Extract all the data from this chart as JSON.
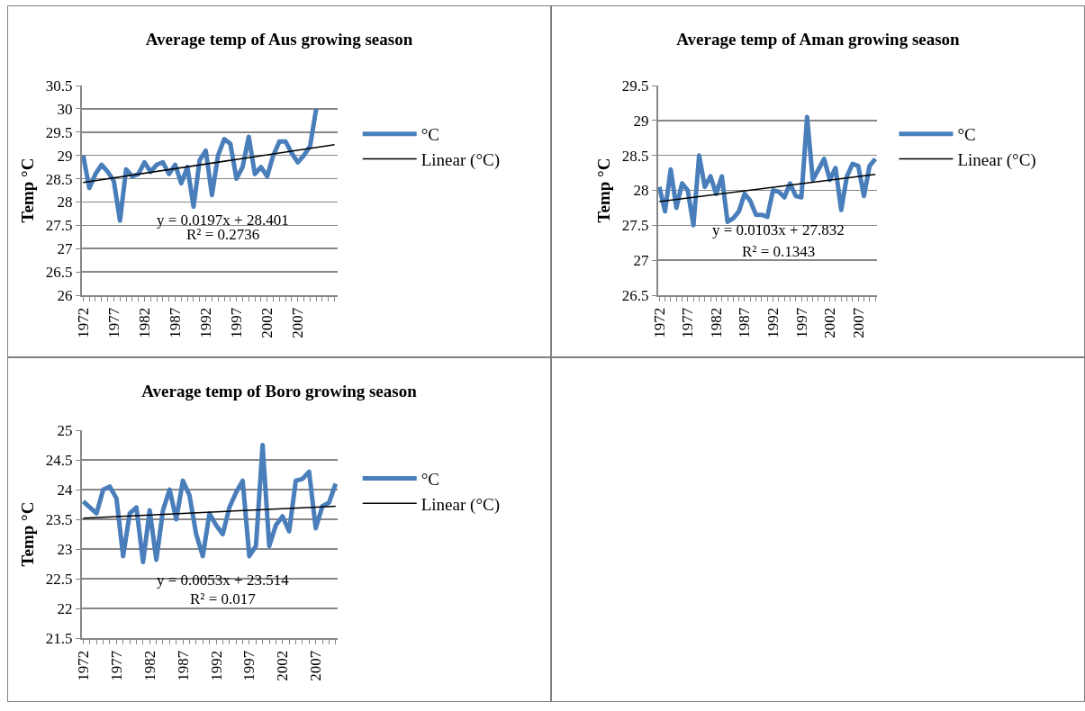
{
  "chart_data": [
    {
      "type": "line",
      "title": "Average temp of Aus growing season",
      "ylabel": "Temp °C",
      "x": [
        1972,
        1973,
        1974,
        1975,
        1976,
        1977,
        1978,
        1979,
        1980,
        1981,
        1982,
        1983,
        1984,
        1985,
        1986,
        1987,
        1988,
        1989,
        1990,
        1991,
        1992,
        1993,
        1994,
        1995,
        1996,
        1997,
        1998,
        1999,
        2000,
        2001,
        2002,
        2003,
        2004,
        2005,
        2006,
        2007,
        2008,
        2009,
        2010
      ],
      "series": [
        {
          "name": "°C",
          "color": "#4a7ebb",
          "values": [
            29.0,
            28.3,
            28.6,
            28.8,
            28.65,
            28.45,
            27.6,
            28.7,
            28.55,
            28.6,
            28.85,
            28.65,
            28.8,
            28.85,
            28.6,
            28.8,
            28.4,
            28.75,
            27.9,
            28.9,
            29.1,
            28.15,
            29.0,
            29.35,
            29.25,
            28.5,
            28.75,
            29.4,
            28.6,
            28.75,
            28.55,
            29.0,
            29.3,
            29.3,
            29.05,
            28.85,
            29.0,
            29.2,
            30.0
          ]
        },
        {
          "name": "Linear (°C)",
          "color": "#000000",
          "x": [
            1972,
            2013
          ],
          "values": [
            28.42,
            29.23
          ]
        }
      ],
      "xlim": [
        1971.8,
        2013.5
      ],
      "xticks": [
        1972,
        {
          "value": 1973,
          "label": null
        },
        {
          "value": 1974,
          "label": null
        },
        {
          "value": 1975,
          "label": null
        },
        {
          "value": 1976,
          "label": null
        },
        1977,
        {
          "value": 1978,
          "label": null
        },
        {
          "value": 1979,
          "label": null
        },
        {
          "value": 1980,
          "label": null
        },
        {
          "value": 1981,
          "label": null
        },
        1982,
        {
          "value": 1983,
          "label": null
        },
        {
          "value": 1984,
          "label": null
        },
        {
          "value": 1985,
          "label": null
        },
        {
          "value": 1986,
          "label": null
        },
        1987,
        {
          "value": 1988,
          "label": null
        },
        {
          "value": 1989,
          "label": null
        },
        {
          "value": 1990,
          "label": null
        },
        {
          "value": 1991,
          "label": null
        },
        1992,
        {
          "value": 1993,
          "label": null
        },
        {
          "value": 1994,
          "label": null
        },
        {
          "value": 1995,
          "label": null
        },
        {
          "value": 1996,
          "label": null
        },
        1997,
        {
          "value": 1998,
          "label": null
        },
        {
          "value": 1999,
          "label": null
        },
        {
          "value": 2000,
          "label": null
        },
        {
          "value": 2001,
          "label": null
        },
        2002,
        {
          "value": 2003,
          "label": null
        },
        {
          "value": 2004,
          "label": null
        },
        {
          "value": 2005,
          "label": null
        },
        {
          "value": 2006,
          "label": null
        },
        2007,
        {
          "value": 2008,
          "label": null
        },
        {
          "value": 2009,
          "label": null
        },
        {
          "value": 2010,
          "label": null
        },
        {
          "value": 2011,
          "label": null
        },
        {
          "value": 2012,
          "label": null
        },
        {
          "value": 2013,
          "label": null
        }
      ],
      "ylim": [
        26,
        30.5
      ],
      "yticks": [
        26,
        26.5,
        27,
        27.5,
        28,
        28.5,
        29,
        29.5,
        30,
        30.5
      ],
      "grid": "y",
      "legend": "right",
      "annotations": [
        "y = 0.0197x + 28.401",
        "R² = 0.2736"
      ]
    },
    {
      "type": "line",
      "title": "Average temp of Aman growing season",
      "ylabel": "Temp °C",
      "x": [
        1972,
        1973,
        1974,
        1975,
        1976,
        1977,
        1978,
        1979,
        1980,
        1981,
        1982,
        1983,
        1984,
        1985,
        1986,
        1987,
        1988,
        1989,
        1990,
        1991,
        1992,
        1993,
        1994,
        1995,
        1996,
        1997,
        1998,
        1999,
        2000,
        2001,
        2002,
        2003,
        2004,
        2005,
        2006,
        2007,
        2008,
        2009,
        2010
      ],
      "series": [
        {
          "name": "°C",
          "color": "#4a7ebb",
          "values": [
            28.05,
            27.7,
            28.3,
            27.75,
            28.1,
            28.0,
            27.5,
            28.5,
            28.05,
            28.2,
            27.95,
            28.2,
            27.55,
            27.6,
            27.7,
            27.95,
            27.85,
            27.65,
            27.65,
            27.62,
            28.0,
            27.98,
            27.9,
            28.1,
            27.92,
            27.9,
            29.05,
            28.15,
            28.3,
            28.45,
            28.15,
            28.32,
            27.72,
            28.2,
            28.38,
            28.35,
            27.92,
            28.35,
            28.45
          ]
        },
        {
          "name": "Linear (°C)",
          "color": "#000000",
          "x": [
            1972,
            2010
          ],
          "values": [
            27.84,
            28.23
          ]
        }
      ],
      "xlim": [
        1971.8,
        2010.3
      ],
      "xticks": [
        1972,
        {
          "value": 1973,
          "label": null
        },
        {
          "value": 1974,
          "label": null
        },
        {
          "value": 1975,
          "label": null
        },
        {
          "value": 1976,
          "label": null
        },
        1977,
        {
          "value": 1978,
          "label": null
        },
        {
          "value": 1979,
          "label": null
        },
        {
          "value": 1980,
          "label": null
        },
        {
          "value": 1981,
          "label": null
        },
        1982,
        {
          "value": 1983,
          "label": null
        },
        {
          "value": 1984,
          "label": null
        },
        {
          "value": 1985,
          "label": null
        },
        {
          "value": 1986,
          "label": null
        },
        1987,
        {
          "value": 1988,
          "label": null
        },
        {
          "value": 1989,
          "label": null
        },
        {
          "value": 1990,
          "label": null
        },
        {
          "value": 1991,
          "label": null
        },
        1992,
        {
          "value": 1993,
          "label": null
        },
        {
          "value": 1994,
          "label": null
        },
        {
          "value": 1995,
          "label": null
        },
        {
          "value": 1996,
          "label": null
        },
        1997,
        {
          "value": 1998,
          "label": null
        },
        {
          "value": 1999,
          "label": null
        },
        {
          "value": 2000,
          "label": null
        },
        {
          "value": 2001,
          "label": null
        },
        2002,
        {
          "value": 2003,
          "label": null
        },
        {
          "value": 2004,
          "label": null
        },
        {
          "value": 2005,
          "label": null
        },
        {
          "value": 2006,
          "label": null
        },
        2007,
        {
          "value": 2008,
          "label": null
        },
        {
          "value": 2009,
          "label": null
        },
        {
          "value": 2010,
          "label": null
        }
      ],
      "ylim": [
        26.5,
        29.5
      ],
      "yticks": [
        26.5,
        27,
        27.5,
        28,
        28.5,
        29,
        29.5
      ],
      "grid": "y",
      "legend": "right",
      "annotations": [
        "y = 0.0103x + 27.832",
        "R² = 0.1343"
      ]
    },
    {
      "type": "line",
      "title": "Average temp of Boro growing season",
      "ylabel": "Temp °C",
      "x": [
        1972,
        1973,
        1974,
        1975,
        1976,
        1977,
        1978,
        1979,
        1980,
        1981,
        1982,
        1983,
        1984,
        1985,
        1986,
        1987,
        1988,
        1989,
        1990,
        1991,
        1992,
        1993,
        1994,
        1995,
        1996,
        1997,
        1998,
        1999,
        2000,
        2001,
        2002,
        2003,
        2004,
        2005,
        2006,
        2007,
        2008,
        2009,
        2010
      ],
      "series": [
        {
          "name": "°C",
          "color": "#4a7ebb",
          "values": [
            23.8,
            23.7,
            23.6,
            24.0,
            24.05,
            23.85,
            22.88,
            23.6,
            23.7,
            22.78,
            23.65,
            22.82,
            23.65,
            24.0,
            23.5,
            24.15,
            23.9,
            23.25,
            22.88,
            23.6,
            23.4,
            23.25,
            23.7,
            23.95,
            24.15,
            22.88,
            23.05,
            24.75,
            23.05,
            23.4,
            23.55,
            23.3,
            24.15,
            24.18,
            24.3,
            23.35,
            23.72,
            23.78,
            24.1
          ]
        },
        {
          "name": "Linear (°C)",
          "color": "#000000",
          "x": [
            1972,
            2010
          ],
          "values": [
            23.52,
            23.72
          ]
        }
      ],
      "xlim": [
        1971.8,
        2010.3
      ],
      "xticks": [
        1972,
        {
          "value": 1973,
          "label": null
        },
        {
          "value": 1974,
          "label": null
        },
        {
          "value": 1975,
          "label": null
        },
        {
          "value": 1976,
          "label": null
        },
        1977,
        {
          "value": 1978,
          "label": null
        },
        {
          "value": 1979,
          "label": null
        },
        {
          "value": 1980,
          "label": null
        },
        {
          "value": 1981,
          "label": null
        },
        1982,
        {
          "value": 1983,
          "label": null
        },
        {
          "value": 1984,
          "label": null
        },
        {
          "value": 1985,
          "label": null
        },
        {
          "value": 1986,
          "label": null
        },
        1987,
        {
          "value": 1988,
          "label": null
        },
        {
          "value": 1989,
          "label": null
        },
        {
          "value": 1990,
          "label": null
        },
        {
          "value": 1991,
          "label": null
        },
        1992,
        {
          "value": 1993,
          "label": null
        },
        {
          "value": 1994,
          "label": null
        },
        {
          "value": 1995,
          "label": null
        },
        {
          "value": 1996,
          "label": null
        },
        1997,
        {
          "value": 1998,
          "label": null
        },
        {
          "value": 1999,
          "label": null
        },
        {
          "value": 2000,
          "label": null
        },
        {
          "value": 2001,
          "label": null
        },
        2002,
        {
          "value": 2003,
          "label": null
        },
        {
          "value": 2004,
          "label": null
        },
        {
          "value": 2005,
          "label": null
        },
        {
          "value": 2006,
          "label": null
        },
        2007,
        {
          "value": 2008,
          "label": null
        },
        {
          "value": 2009,
          "label": null
        },
        {
          "value": 2010,
          "label": null
        }
      ],
      "ylim": [
        21.5,
        25
      ],
      "yticks": [
        21.5,
        22,
        22.5,
        23,
        23.5,
        24,
        24.5,
        25
      ],
      "grid": "y",
      "legend": "right",
      "annotations": [
        "y = 0.0053x + 23.514",
        "R² = 0.017"
      ]
    }
  ]
}
